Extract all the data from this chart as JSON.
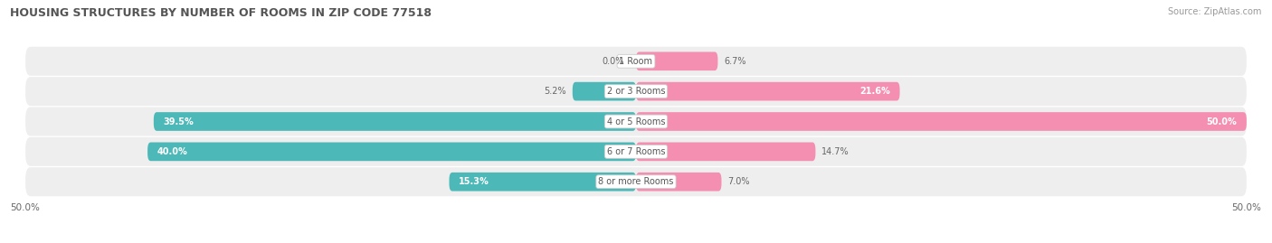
{
  "title": "HOUSING STRUCTURES BY NUMBER OF ROOMS IN ZIP CODE 77518",
  "source": "Source: ZipAtlas.com",
  "categories": [
    "1 Room",
    "2 or 3 Rooms",
    "4 or 5 Rooms",
    "6 or 7 Rooms",
    "8 or more Rooms"
  ],
  "owner_values": [
    0.0,
    5.2,
    39.5,
    40.0,
    15.3
  ],
  "renter_values": [
    6.7,
    21.6,
    50.0,
    14.7,
    7.0
  ],
  "owner_color": "#4db8b8",
  "renter_color": "#f48fb1",
  "bg_row_color": "#eeeeee",
  "axis_max": 50.0,
  "x_axis_left_label": "50.0%",
  "x_axis_right_label": "50.0%",
  "title_fontsize": 9,
  "source_fontsize": 7,
  "bar_label_fontsize": 7,
  "category_fontsize": 7,
  "legend_fontsize": 7.5
}
